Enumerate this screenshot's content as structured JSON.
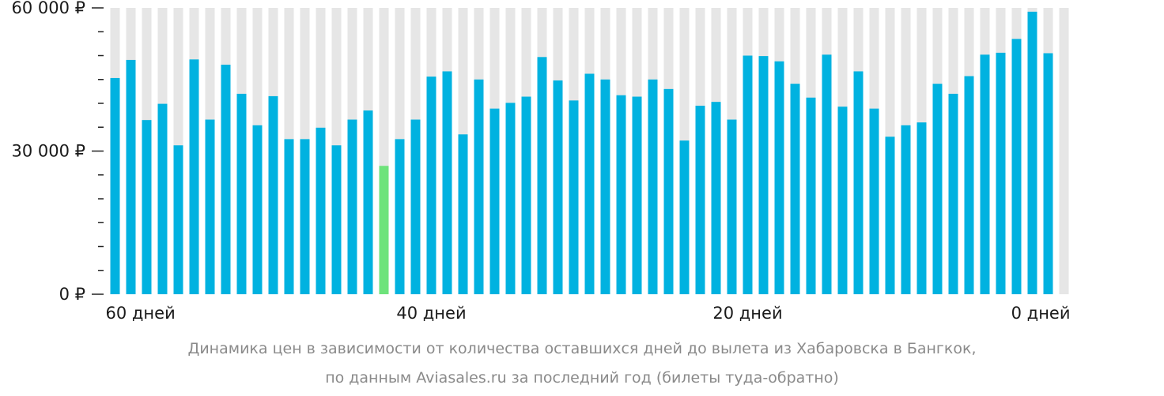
{
  "chart_data": {
    "type": "bar",
    "title": "",
    "xlabel": "",
    "ylabel": "",
    "ylim": [
      0,
      60000
    ],
    "y_ticks": [
      {
        "value": 0,
        "label": "0 ₽"
      },
      {
        "value": 30000,
        "label": "30 000 ₽"
      },
      {
        "value": 60000,
        "label": "60 000 ₽"
      }
    ],
    "x_ticks": [
      {
        "value": 60,
        "label": "60 дней"
      },
      {
        "value": 40,
        "label": "40 дней"
      },
      {
        "value": 20,
        "label": "20 дней"
      },
      {
        "value": 0,
        "label": "0 дней"
      }
    ],
    "days": [
      60,
      59,
      58,
      57,
      56,
      55,
      54,
      53,
      52,
      51,
      50,
      49,
      48,
      47,
      46,
      45,
      44,
      43,
      42,
      41,
      40,
      39,
      38,
      37,
      36,
      35,
      34,
      33,
      32,
      31,
      30,
      29,
      28,
      27,
      26,
      25,
      24,
      23,
      22,
      21,
      20,
      19,
      18,
      17,
      16,
      15,
      14,
      13,
      12,
      11,
      10,
      9,
      8,
      7,
      6,
      5,
      4,
      3,
      2,
      1,
      0
    ],
    "values": [
      45300,
      49100,
      36500,
      39900,
      31200,
      49200,
      36600,
      48100,
      42000,
      35400,
      41500,
      32500,
      32500,
      34900,
      31200,
      36600,
      38500,
      26900,
      32500,
      36600,
      45600,
      46700,
      33500,
      45000,
      38900,
      40100,
      41400,
      49700,
      44800,
      40600,
      46200,
      45000,
      41700,
      41400,
      45000,
      43000,
      32200,
      39500,
      40300,
      36600,
      50000,
      49900,
      48800,
      44100,
      41200,
      50200,
      39300,
      46700,
      38900,
      33000,
      35400,
      36000,
      44100,
      42000,
      45700,
      50200,
      50600,
      53500,
      59200,
      50500,
      0
    ],
    "highlight_day": 43,
    "bar_color": "#00b2e0",
    "highlight_color": "#6ee37b",
    "track_color": "#e6e6e6",
    "grid": false
  },
  "caption": {
    "line1": "Динамика цен в зависимости от количества оставшихся дней до вылета из Хабаровска в Бангкок,",
    "line2": "по данным Aviasales.ru за последний год (билеты туда-обратно)"
  }
}
